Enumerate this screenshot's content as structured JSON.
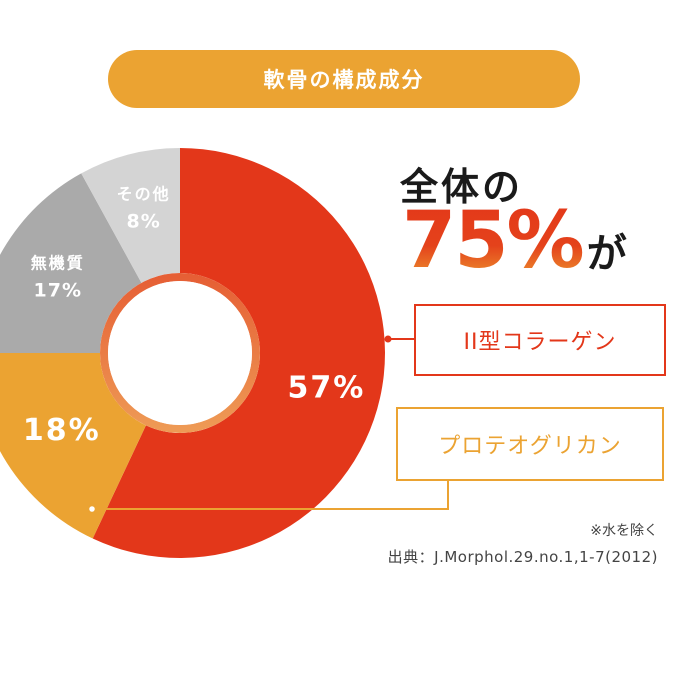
{
  "title": "軟骨の構成成分",
  "headline": {
    "line1": "全体の",
    "percent": "75%",
    "suffix": "が"
  },
  "callouts": {
    "collagen": "II型コラーゲン",
    "proteoglycan": "プロテオグリカン"
  },
  "notes": {
    "water": "※水を除く",
    "source": "出典：J.Morphol.29.no.1,1-7(2012)"
  },
  "colors": {
    "collagen": "#e3371a",
    "proteoglycan": "#eba332",
    "minerals": "#aaaaaa",
    "other": "#d4d4d4",
    "title_pill": "#eba332"
  },
  "chart_data": {
    "type": "pie",
    "title": "軟骨の構成成分",
    "slices": [
      {
        "value": 57,
        "label": "57%",
        "name": "",
        "color": "#e3371a",
        "text_color": "#ffffff"
      },
      {
        "value": 18,
        "label": "18%",
        "name": "",
        "color": "#eba332",
        "text_color": "#ffffff"
      },
      {
        "value": 17,
        "label": "17%",
        "name": "無機質",
        "color": "#aaaaaa",
        "text_color": "#ffffff"
      },
      {
        "value": 8,
        "label": "8%",
        "name": "その他",
        "color": "#d4d4d4",
        "text_color": "#ffffff"
      }
    ],
    "start": "top",
    "direction": "clockwise",
    "donut": true
  }
}
